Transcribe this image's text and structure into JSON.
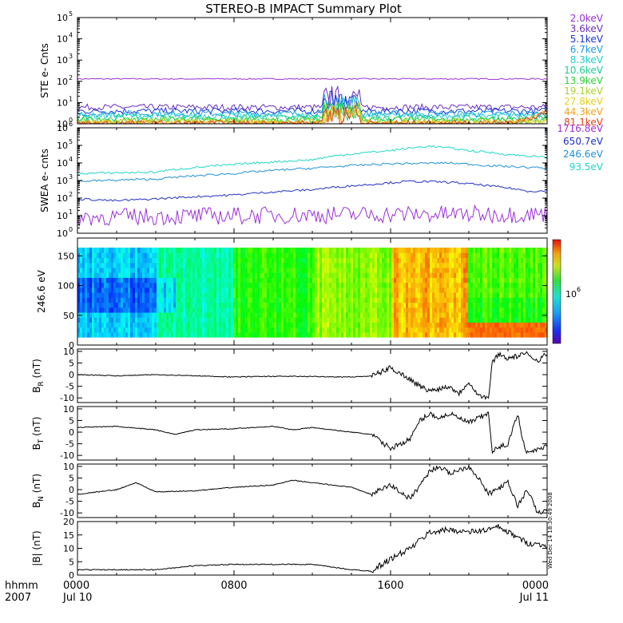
{
  "title": "STEREO-B IMPACT Summary Plot",
  "footer": {
    "hhmm": "hhmm",
    "year": "2007"
  },
  "stamp": "Wed Dec 14 18:30:49 2008",
  "x_axis": {
    "ticks": [
      {
        "hour": 0,
        "top": "0000",
        "bottom": "Jul 10"
      },
      {
        "hour": 8,
        "top": "0800",
        "bottom": ""
      },
      {
        "hour": 16,
        "top": "1600",
        "bottom": ""
      },
      {
        "hour": 24,
        "top": "0000",
        "bottom": "Jul 11"
      }
    ]
  },
  "colors": {
    "ste": [
      "#9b30d8",
      "#6a2fc2",
      "#1a35d8",
      "#1a9ae0",
      "#19cfd0",
      "#1ad18e",
      "#2fd33a",
      "#a8d22a",
      "#e6cf1a",
      "#f2a11a",
      "#e0401a"
    ],
    "swea": [
      "#9b30d8",
      "#2030c8",
      "#1f90d8",
      "#1ed6c8"
    ]
  },
  "chart_data": [
    {
      "id": "ste",
      "type": "line",
      "ylabel": "STE e- Cnts",
      "yscale": "log",
      "ylim": [
        1,
        100000
      ],
      "yticks": [
        {
          "v": 1,
          "m": "10",
          "e": "0"
        },
        {
          "v": 10,
          "m": "10",
          "e": "1"
        },
        {
          "v": 100,
          "m": "10",
          "e": "2"
        },
        {
          "v": 1000,
          "m": "10",
          "e": "3"
        },
        {
          "v": 10000,
          "m": "10",
          "e": "4"
        },
        {
          "v": 100000,
          "m": "10",
          "e": "5"
        }
      ],
      "series": [
        {
          "name": "2.0keV",
          "base": 130,
          "noise": 0.03
        },
        {
          "name": "3.6keV",
          "base": 6,
          "noise": 0.15
        },
        {
          "name": "5.1keV",
          "base": 4,
          "noise": 0.15
        },
        {
          "name": "6.7keV",
          "base": 3,
          "noise": 0.15
        },
        {
          "name": "8.3keV",
          "base": 2.4,
          "noise": 0.15
        },
        {
          "name": "10.6keV",
          "base": 1.8,
          "noise": 0.15
        },
        {
          "name": "13.9keV",
          "base": 1.5,
          "noise": 0.15
        },
        {
          "name": "19.1keV",
          "base": 1.3,
          "noise": 0.15
        },
        {
          "name": "27.8keV",
          "base": 1.15,
          "noise": 0.15
        },
        {
          "name": "44.3keV",
          "base": 1.05,
          "noise": 0.15
        },
        {
          "name": "81.1keV",
          "base": 1.02,
          "noise": 0.15
        }
      ]
    },
    {
      "id": "swea",
      "type": "line",
      "ylabel": "SWEA e- cnts",
      "yscale": "log",
      "ylim": [
        1,
        1000000
      ],
      "yticks": [
        {
          "v": 1,
          "m": "10",
          "e": "0"
        },
        {
          "v": 10,
          "m": "10",
          "e": "1"
        },
        {
          "v": 100,
          "m": "10",
          "e": "2"
        },
        {
          "v": 1000,
          "m": "10",
          "e": "3"
        },
        {
          "v": 10000,
          "m": "10",
          "e": "4"
        },
        {
          "v": 100000,
          "m": "10",
          "e": "5"
        },
        {
          "v": 1000000,
          "m": "10",
          "e": "6"
        }
      ],
      "series": [
        {
          "name": "1716.8eV",
          "points": [
            [
              0,
              8
            ],
            [
              8,
              10
            ],
            [
              16,
              12
            ],
            [
              24,
              12
            ]
          ]
        },
        {
          "name": "650.7eV",
          "points": [
            [
              0,
              90
            ],
            [
              2,
              70
            ],
            [
              4,
              90
            ],
            [
              8,
              150
            ],
            [
              12,
              300
            ],
            [
              15,
              600
            ],
            [
              17,
              900
            ],
            [
              19,
              800
            ],
            [
              21,
              500
            ],
            [
              23,
              250
            ],
            [
              24,
              250
            ]
          ]
        },
        {
          "name": "246.6eV",
          "points": [
            [
              0,
              900
            ],
            [
              4,
              1200
            ],
            [
              8,
              2500
            ],
            [
              12,
              5000
            ],
            [
              16,
              9000
            ],
            [
              19,
              10000
            ],
            [
              21,
              7000
            ],
            [
              24,
              5000
            ]
          ]
        },
        {
          "name": "93.5eV",
          "points": [
            [
              0,
              2500
            ],
            [
              4,
              3000
            ],
            [
              8,
              8000
            ],
            [
              12,
              15000
            ],
            [
              16,
              50000
            ],
            [
              18,
              90000
            ],
            [
              20,
              50000
            ],
            [
              22,
              30000
            ],
            [
              24,
              20000
            ]
          ]
        }
      ]
    },
    {
      "id": "pad",
      "type": "heatmap",
      "ylabel": "246.6 eV",
      "ylim": [
        0,
        180
      ],
      "yticks": [
        0,
        50,
        100,
        150
      ],
      "colorbar_label": "10",
      "colorbar_exp": "6"
    },
    {
      "id": "br",
      "type": "line",
      "ylabel": "B",
      "ysub": "R",
      "yunit": "(nT)",
      "ylim": [
        -12,
        11
      ],
      "yticks": [
        -10,
        -5,
        0,
        5,
        10
      ],
      "points": [
        [
          0,
          0
        ],
        [
          2,
          -0.5
        ],
        [
          4,
          0
        ],
        [
          6,
          -0.5
        ],
        [
          8,
          -1
        ],
        [
          10,
          -0.7
        ],
        [
          12,
          -0.8
        ],
        [
          14,
          -1
        ],
        [
          15,
          -0.6
        ],
        [
          15.5,
          1
        ],
        [
          16,
          3
        ],
        [
          17,
          -2
        ],
        [
          17.5,
          -5
        ],
        [
          18,
          -7
        ],
        [
          19,
          -5
        ],
        [
          19.5,
          -8
        ],
        [
          20,
          -3
        ],
        [
          20.5,
          -9
        ],
        [
          21,
          -10
        ],
        [
          21.2,
          5
        ],
        [
          21.5,
          9
        ],
        [
          22,
          7
        ],
        [
          23,
          9
        ],
        [
          23.5,
          6
        ],
        [
          24,
          9
        ]
      ]
    },
    {
      "id": "bt",
      "type": "line",
      "ylabel": "B",
      "ysub": "T",
      "yunit": "(nT)",
      "ylim": [
        -12,
        11
      ],
      "yticks": [
        -10,
        -5,
        0,
        5,
        10
      ],
      "points": [
        [
          0,
          2
        ],
        [
          2,
          2.5
        ],
        [
          4,
          1
        ],
        [
          5,
          -1
        ],
        [
          6,
          1
        ],
        [
          8,
          1.5
        ],
        [
          10,
          2.5
        ],
        [
          11,
          1
        ],
        [
          12,
          2
        ],
        [
          14,
          0
        ],
        [
          15,
          -1
        ],
        [
          16,
          -7
        ],
        [
          17,
          -3
        ],
        [
          17.5,
          5
        ],
        [
          18,
          8
        ],
        [
          18.5,
          6
        ],
        [
          19,
          8
        ],
        [
          20,
          4
        ],
        [
          21,
          8
        ],
        [
          21.2,
          -8
        ],
        [
          22,
          -5
        ],
        [
          22.5,
          8
        ],
        [
          22.8,
          -5
        ],
        [
          23,
          -9
        ],
        [
          24,
          -6
        ]
      ]
    },
    {
      "id": "bn",
      "type": "line",
      "ylabel": "B",
      "ysub": "N",
      "yunit": "(nT)",
      "ylim": [
        -12,
        11
      ],
      "yticks": [
        -10,
        -5,
        0,
        5,
        10
      ],
      "points": [
        [
          0,
          -2
        ],
        [
          2,
          0
        ],
        [
          3,
          3
        ],
        [
          4,
          -1
        ],
        [
          6,
          -0.5
        ],
        [
          8,
          1
        ],
        [
          10,
          2
        ],
        [
          11,
          4
        ],
        [
          12,
          3
        ],
        [
          14,
          1
        ],
        [
          15,
          -2
        ],
        [
          16,
          2
        ],
        [
          17,
          -4
        ],
        [
          18,
          8
        ],
        [
          18.5,
          10
        ],
        [
          19,
          7
        ],
        [
          20,
          10
        ],
        [
          20.5,
          5
        ],
        [
          21,
          -2
        ],
        [
          22,
          3
        ],
        [
          22.5,
          -7
        ],
        [
          23,
          0
        ],
        [
          23.5,
          -10
        ],
        [
          24,
          -9
        ]
      ]
    },
    {
      "id": "bmag",
      "type": "line",
      "ylabel": "|B|",
      "yunit": "(nT)",
      "ylim": [
        0,
        20
      ],
      "yticks": [
        0,
        5,
        10,
        15,
        20
      ],
      "points": [
        [
          0,
          2
        ],
        [
          4,
          2
        ],
        [
          6,
          3.5
        ],
        [
          8,
          4
        ],
        [
          10,
          4
        ],
        [
          12,
          4
        ],
        [
          14,
          2
        ],
        [
          15,
          1.5
        ],
        [
          16,
          6
        ],
        [
          17,
          10
        ],
        [
          18,
          16
        ],
        [
          19,
          17
        ],
        [
          20,
          16
        ],
        [
          21,
          17
        ],
        [
          21.5,
          18
        ],
        [
          22,
          16
        ],
        [
          23,
          12
        ],
        [
          24,
          11
        ]
      ]
    }
  ]
}
